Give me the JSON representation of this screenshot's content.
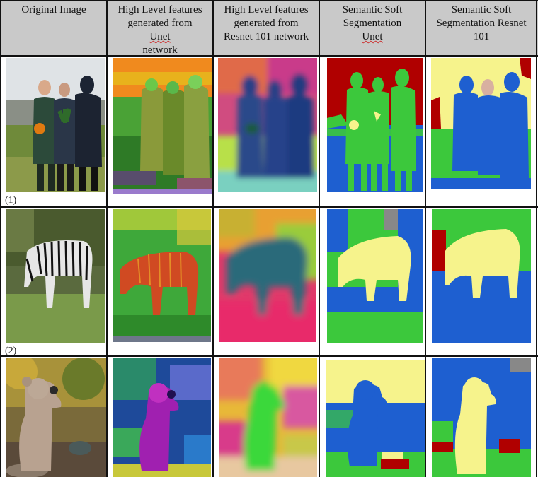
{
  "headers": [
    {
      "lines": [
        "Original Image"
      ]
    },
    {
      "lines": [
        "High Level features",
        "generated from Unet",
        "network"
      ]
    },
    {
      "lines": [
        "High Level features",
        "generated from",
        "Resnet 101 network"
      ]
    },
    {
      "lines": [
        "Semantic Soft",
        "Segmentation Unet"
      ]
    },
    {
      "lines": [
        "Semantic Soft",
        "Segmentation Resnet",
        "101"
      ]
    }
  ],
  "rows": [
    {
      "label": "(1)",
      "subject": "people"
    },
    {
      "label": "(2)",
      "subject": "zebra"
    },
    {
      "label": "",
      "subject": "teddy-bear"
    }
  ],
  "colors": {
    "header_bg": "#c9c9c9",
    "border": "#111111",
    "seg_red": "#b00000",
    "seg_green": "#3cc83c",
    "seg_blue": "#1e5fd0",
    "seg_yellow": "#f6f38c"
  }
}
